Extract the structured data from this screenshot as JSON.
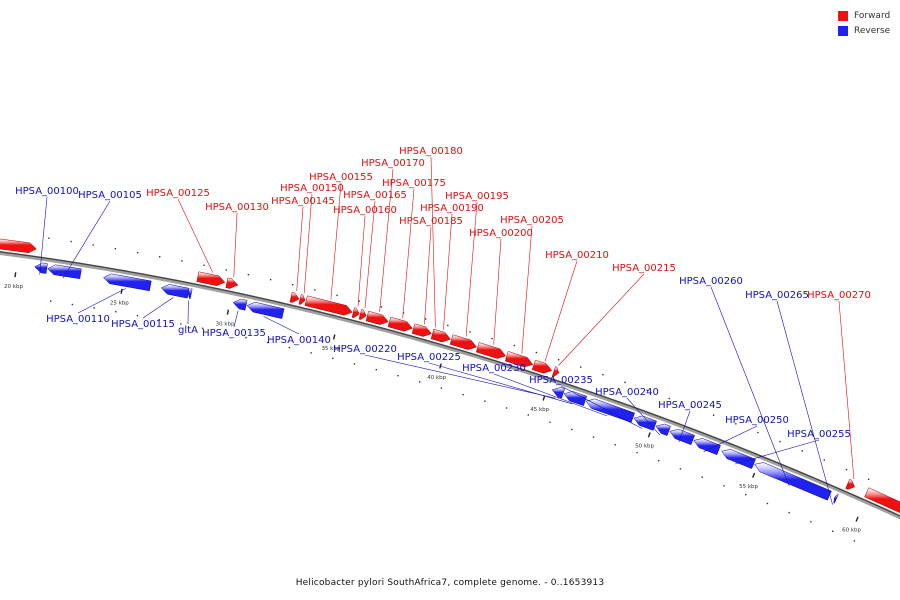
{
  "legend": {
    "forward_label": "Forward",
    "reverse_label": "Reverse",
    "forward_color": "#ee1111",
    "reverse_color": "#2222ee"
  },
  "caption": "Helicobacter pylori SouthAfrica7, complete genome. - 0..1653913",
  "colors": {
    "backbone": "#888888",
    "forward_label": "#dd1111",
    "reverse_label": "#1111bb"
  },
  "scale_labels": [
    "20 kbp",
    "25 kbp",
    "30 kbp",
    "35 kbp",
    "40 kbp",
    "45 kbp",
    "50 kbp",
    "55 kbp",
    "60 kbp"
  ],
  "genes": [
    {
      "label": "",
      "strand": "forward"
    },
    {
      "label": "HPSA_00100",
      "strand": "reverse"
    },
    {
      "label": "HPSA_00105",
      "strand": "reverse"
    },
    {
      "label": "HPSA_00110",
      "strand": "reverse"
    },
    {
      "label": "HPSA_00115",
      "strand": "reverse"
    },
    {
      "label": "gltA",
      "strand": "reverse"
    },
    {
      "label": "HPSA_00125",
      "strand": "forward"
    },
    {
      "label": "HPSA_00130",
      "strand": "forward"
    },
    {
      "label": "HPSA_00135",
      "strand": "reverse"
    },
    {
      "label": "HPSA_00140",
      "strand": "reverse"
    },
    {
      "label": "HPSA_00145",
      "strand": "forward"
    },
    {
      "label": "HPSA_00150",
      "strand": "forward"
    },
    {
      "label": "HPSA_00155",
      "strand": "forward"
    },
    {
      "label": "HPSA_00160",
      "strand": "forward"
    },
    {
      "label": "HPSA_00165",
      "strand": "forward"
    },
    {
      "label": "HPSA_00170",
      "strand": "forward"
    },
    {
      "label": "HPSA_00175",
      "strand": "forward"
    },
    {
      "label": "HPSA_00180",
      "strand": "forward"
    },
    {
      "label": "HPSA_00185",
      "strand": "forward"
    },
    {
      "label": "HPSA_00190",
      "strand": "forward"
    },
    {
      "label": "HPSA_00195",
      "strand": "forward"
    },
    {
      "label": "HPSA_00200",
      "strand": "forward"
    },
    {
      "label": "HPSA_00205",
      "strand": "forward"
    },
    {
      "label": "HPSA_00210",
      "strand": "forward"
    },
    {
      "label": "HPSA_00215",
      "strand": "forward"
    },
    {
      "label": "HPSA_00220",
      "strand": "reverse"
    },
    {
      "label": "HPSA_00225",
      "strand": "reverse"
    },
    {
      "label": "HPSA_00230",
      "strand": "reverse"
    },
    {
      "label": "HPSA_00235",
      "strand": "reverse"
    },
    {
      "label": "HPSA_00240",
      "strand": "reverse"
    },
    {
      "label": "HPSA_00245",
      "strand": "reverse"
    },
    {
      "label": "HPSA_00250",
      "strand": "reverse"
    },
    {
      "label": "HPSA_00255",
      "strand": "reverse"
    },
    {
      "label": "HPSA_00260",
      "strand": "reverse"
    },
    {
      "label": "HPSA_00265",
      "strand": "reverse"
    },
    {
      "label": "HPSA_00270",
      "strand": "forward"
    },
    {
      "label": "",
      "strand": "forward"
    }
  ]
}
